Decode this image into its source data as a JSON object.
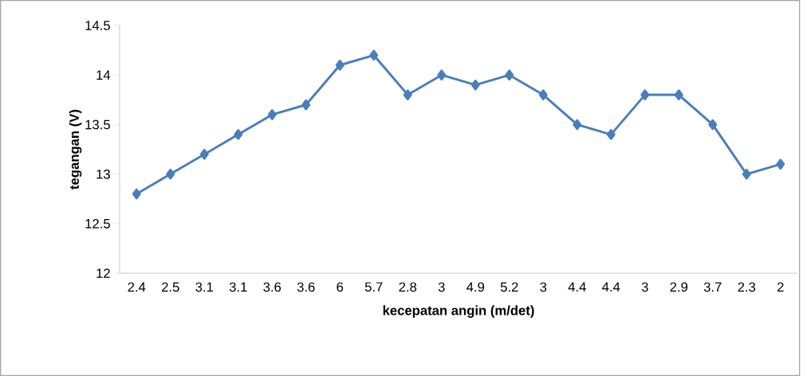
{
  "chart_data": {
    "type": "line",
    "xlabel": "kecepatan angin (m/det)",
    "ylabel": "tegangan (V)",
    "categories": [
      "2.4",
      "2.5",
      "3.1",
      "3.1",
      "3.6",
      "3.6",
      "6",
      "5.7",
      "2.8",
      "3",
      "4.9",
      "5.2",
      "3",
      "4.4",
      "4.4",
      "3",
      "2.9",
      "3.7",
      "2.3",
      "2"
    ],
    "series": [
      {
        "color": "#4a7ebb",
        "values": [
          12.8,
          13.0,
          13.2,
          13.4,
          13.6,
          13.7,
          14.1,
          14.2,
          13.8,
          14.0,
          13.9,
          14.0,
          13.8,
          13.5,
          13.4,
          13.8,
          13.8,
          13.5,
          13.0,
          13.1
        ]
      }
    ],
    "ylim": [
      12,
      14.5
    ],
    "yticks": [
      12,
      12.5,
      13,
      13.5,
      14,
      14.5
    ],
    "marker": "diamond",
    "line_style": "solid"
  }
}
